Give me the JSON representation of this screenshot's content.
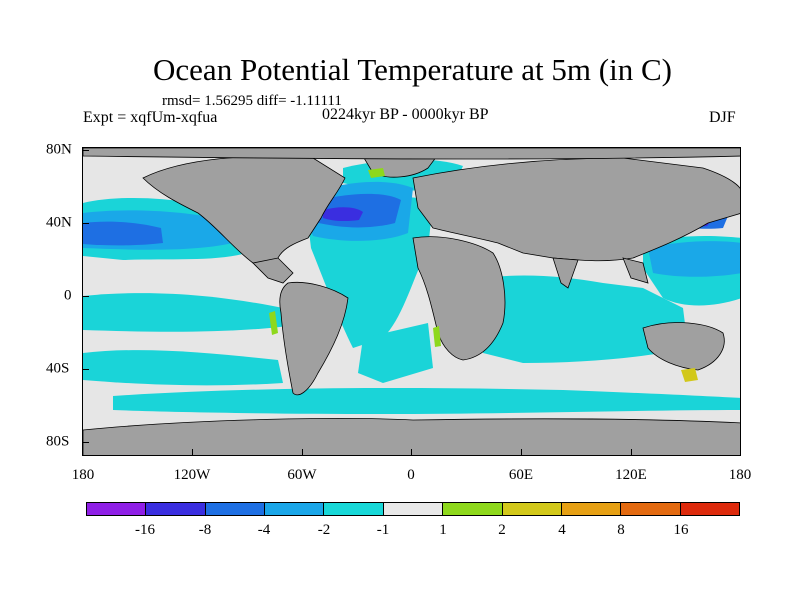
{
  "title": "Ocean Potential Temperature at 5m (in C)",
  "stats": "rmsd= 1.56295  diff= -1.11111",
  "experiment": "Expt = xqfUm-xqfua",
  "period": "0224kyr BP - 0000kyr BP",
  "season": "DJF",
  "x_ticks": [
    "180",
    "120W",
    "60W",
    "0",
    "60E",
    "120E",
    "180"
  ],
  "y_ticks": [
    "80N",
    "40N",
    "0",
    "40S",
    "80S"
  ],
  "colorbar": {
    "colors": [
      "#8f1fe6",
      "#3a2ee0",
      "#1e6fe3",
      "#1aa6e8",
      "#18d8d8",
      "#e8e8e8",
      "#8ed81c",
      "#d2c81a",
      "#e6a014",
      "#e36a10",
      "#dd2a0c"
    ],
    "labels": [
      "-16",
      "-8",
      "-4",
      "-2",
      "-1",
      "1",
      "2",
      "4",
      "8",
      "16"
    ]
  },
  "palette": {
    "land": "#a0a0a0",
    "neutral": "#e6e6e6",
    "cyan": "#1ad4d8",
    "lightblue": "#1aa8e8",
    "blue": "#1e6fe3",
    "darkblue": "#3a2ee0",
    "green": "#8ed81c",
    "yellow": "#d2c81a"
  }
}
